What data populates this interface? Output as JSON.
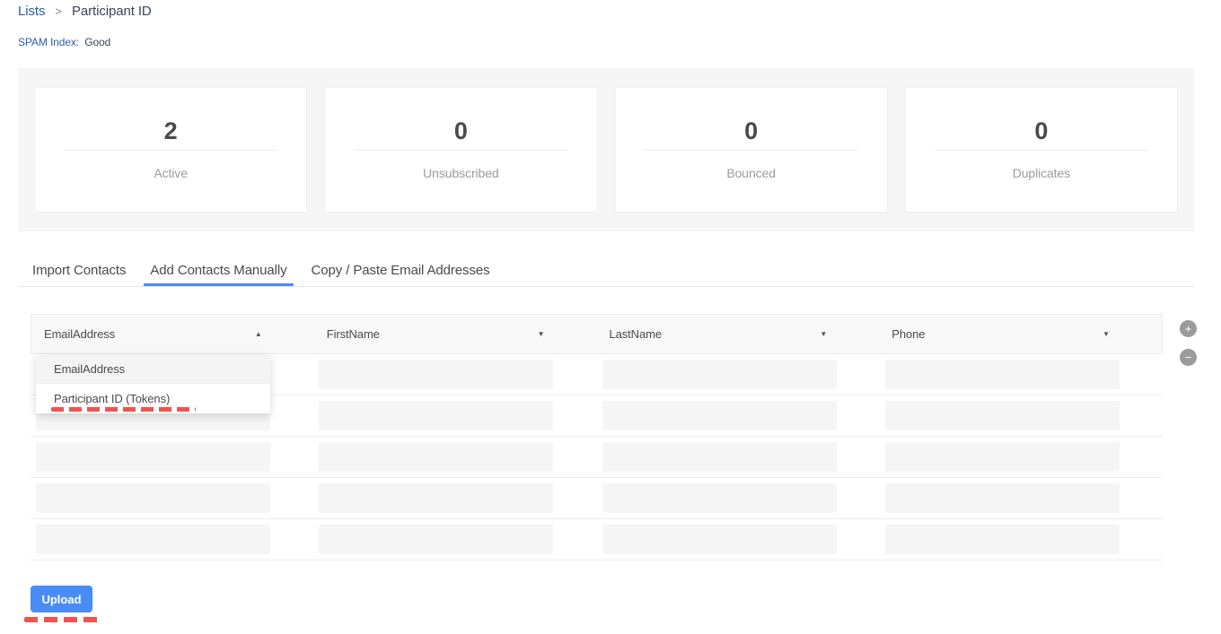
{
  "breadcrumb": {
    "root": "Lists",
    "separator": ">",
    "current": "Participant ID"
  },
  "spam_index": {
    "label": "SPAM Index:",
    "value": "Good"
  },
  "stats": {
    "cards": [
      {
        "value": "2",
        "label": "Active"
      },
      {
        "value": "0",
        "label": "Unsubscribed"
      },
      {
        "value": "0",
        "label": "Bounced"
      },
      {
        "value": "0",
        "label": "Duplicates"
      }
    ]
  },
  "tabs": [
    {
      "label": "Import Contacts",
      "active": false
    },
    {
      "label": "Add Contacts Manually",
      "active": true
    },
    {
      "label": "Copy / Paste Email Addresses",
      "active": false
    }
  ],
  "contact_table": {
    "columns": [
      {
        "label": "EmailAddress",
        "open": true
      },
      {
        "label": "FirstName",
        "open": false
      },
      {
        "label": "LastName",
        "open": false
      },
      {
        "label": "Phone",
        "open": false
      }
    ],
    "dropdown": {
      "options": [
        {
          "label": "EmailAddress",
          "highlighted": true,
          "annotated": false
        },
        {
          "label": "Participant ID (Tokens)",
          "highlighted": false,
          "annotated": true
        }
      ]
    },
    "row_count": 5,
    "inputs_per_row": 4,
    "input_value": "",
    "input_placeholder": ""
  },
  "row_controls": {
    "add_label": "+",
    "remove_label": "−"
  },
  "upload": {
    "label": "Upload"
  },
  "icons": {
    "caret_up": "▲",
    "caret_down": "▼",
    "plus": "+",
    "minus": "−",
    "breadcrumb_chevron": ">"
  },
  "colors": {
    "accent_blue": "#4a8cf7",
    "link_blue": "#2d5ca8",
    "annotation_red": "#ef5350",
    "stats_background": "#f5f5f6",
    "input_gray": "#f5f5f6",
    "text_dark": "#4a4a4a",
    "text_muted": "#9b9b9b"
  }
}
